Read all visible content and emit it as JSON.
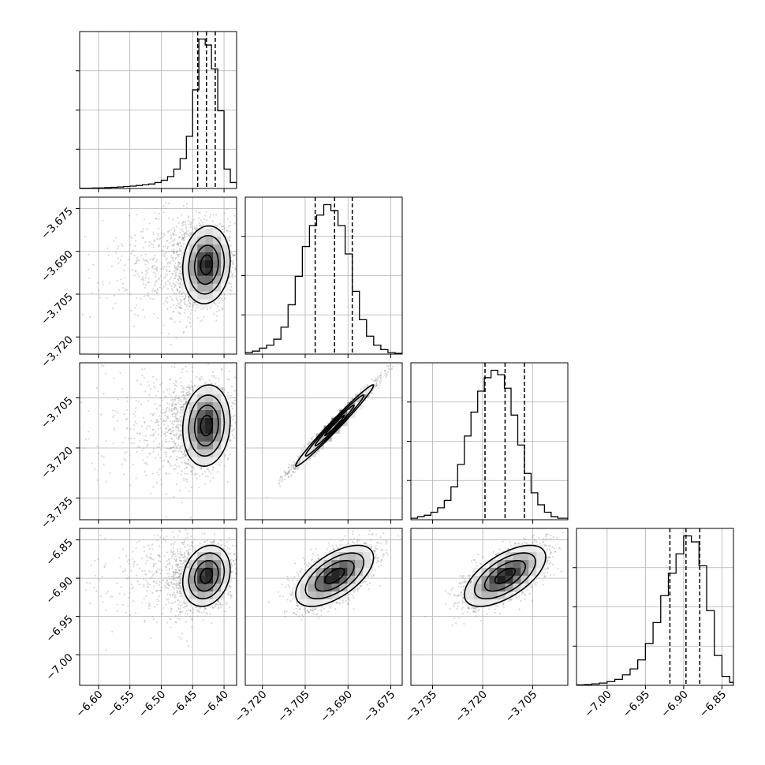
{
  "chart_data": {
    "type": "corner",
    "parameters": [
      {
        "id": "p1",
        "range": [
          -6.63,
          -6.38
        ],
        "ticks": [
          -6.6,
          -6.55,
          -6.5,
          -6.45,
          -6.4
        ],
        "tick_labels": [
          "−6.60",
          "−6.55",
          "−6.50",
          "−6.45",
          "−6.40"
        ],
        "median": -6.428,
        "quantiles": [
          -6.442,
          -6.414
        ],
        "hist_bins": [
          -6.63,
          -6.62,
          -6.61,
          -6.6,
          -6.59,
          -6.58,
          -6.57,
          -6.56,
          -6.55,
          -6.54,
          -6.53,
          -6.52,
          -6.51,
          -6.5,
          -6.49,
          -6.48,
          -6.47,
          -6.46,
          -6.45,
          -6.44,
          -6.43,
          -6.42,
          -6.41,
          -6.4,
          -6.39,
          -6.38
        ],
        "hist_counts": [
          0.2,
          0.2,
          0.3,
          0.4,
          0.6,
          0.8,
          1,
          1.3,
          1.6,
          2,
          2.5,
          3,
          4,
          5.5,
          8,
          13,
          20,
          35,
          66,
          100,
          96,
          80,
          52,
          13,
          4
        ]
      },
      {
        "id": "p2",
        "range": [
          -3.726,
          -3.671
        ],
        "ticks": [
          -3.72,
          -3.705,
          -3.69,
          -3.675
        ],
        "tick_labels": [
          "−3.720",
          "−3.705",
          "−3.690",
          "−3.675"
        ],
        "median": -3.6947,
        "quantiles": [
          -3.7015,
          -3.6885
        ],
        "hist_bins": [
          -3.726,
          -3.7235,
          -3.721,
          -3.7185,
          -3.716,
          -3.7135,
          -3.711,
          -3.7085,
          -3.706,
          -3.7035,
          -3.701,
          -3.6985,
          -3.696,
          -3.6935,
          -3.691,
          -3.6885,
          -3.686,
          -3.6835,
          -3.681,
          -3.6785,
          -3.676,
          -3.6735,
          -3.671
        ],
        "hist_counts": [
          1,
          2,
          4,
          6,
          10,
          18,
          33,
          52,
          72,
          86,
          93,
          100,
          96,
          86,
          67,
          42,
          23,
          12,
          6,
          3,
          1,
          0.5
        ]
      },
      {
        "id": "p3",
        "range": [
          -3.7415,
          -3.6945
        ],
        "ticks": [
          -3.735,
          -3.72,
          -3.705
        ],
        "tick_labels": [
          "−3.735",
          "−3.720",
          "−3.705"
        ],
        "median": -3.7133,
        "quantiles": [
          -3.7193,
          -3.7075
        ],
        "hist_bins": [
          -3.7415,
          -3.7395,
          -3.7375,
          -3.7355,
          -3.7335,
          -3.7315,
          -3.7295,
          -3.7275,
          -3.7255,
          -3.7235,
          -3.7215,
          -3.7195,
          -3.7175,
          -3.7155,
          -3.7135,
          -3.7115,
          -3.7095,
          -3.7075,
          -3.7055,
          -3.7035,
          -3.7015,
          -3.6995,
          -3.6975,
          -3.6945
        ],
        "hist_counts": [
          1,
          2,
          3,
          5,
          8,
          13,
          22,
          37,
          56,
          72,
          86,
          95,
          100,
          97,
          88,
          70,
          50,
          31,
          18,
          10,
          5,
          2,
          1
        ]
      },
      {
        "id": "p4",
        "range": [
          -7.04,
          -6.835
        ],
        "ticks": [
          -7.0,
          -6.95,
          -6.9,
          -6.85
        ],
        "tick_labels": [
          "−7.00",
          "−6.95",
          "−6.90",
          "−6.85"
        ],
        "median": -6.897,
        "quantiles": [
          -6.918,
          -6.879
        ],
        "hist_bins": [
          -7.04,
          -7.03,
          -7.02,
          -7.01,
          -7.0,
          -6.99,
          -6.98,
          -6.97,
          -6.96,
          -6.95,
          -6.94,
          -6.93,
          -6.92,
          -6.91,
          -6.9,
          -6.89,
          -6.88,
          -6.87,
          -6.86,
          -6.85,
          -6.84,
          -6.835
        ],
        "hist_counts": [
          0.3,
          0.5,
          1,
          1.5,
          2.5,
          4,
          7,
          11,
          17,
          28,
          42,
          60,
          75,
          88,
          100,
          96,
          80,
          50,
          20,
          6,
          2
        ]
      }
    ],
    "pairs": [
      {
        "x": "p1",
        "y": "p2",
        "center": [
          -6.428,
          -3.6947
        ],
        "sigma": [
          0.018,
          0.0065
        ],
        "rho": 0.1,
        "tail": "left"
      },
      {
        "x": "p1",
        "y": "p3",
        "center": [
          -6.428,
          -3.7133
        ],
        "sigma": [
          0.018,
          0.0058
        ],
        "rho": 0.1,
        "tail": "left"
      },
      {
        "x": "p2",
        "y": "p3",
        "center": [
          -3.6947,
          -3.7133
        ],
        "sigma": [
          0.0065,
          0.0058
        ],
        "rho": 0.985,
        "tail": "none"
      },
      {
        "x": "p1",
        "y": "p4",
        "center": [
          -6.428,
          -6.897
        ],
        "sigma": [
          0.018,
          0.019
        ],
        "rho": 0.2,
        "tail": "left"
      },
      {
        "x": "p2",
        "y": "p4",
        "center": [
          -3.6947,
          -6.897
        ],
        "sigma": [
          0.0065,
          0.019
        ],
        "rho": 0.6,
        "tail": "none"
      },
      {
        "x": "p3",
        "y": "p4",
        "center": [
          -3.7133,
          -6.897
        ],
        "sigma": [
          0.0058,
          0.019
        ],
        "rho": 0.62,
        "tail": "none"
      }
    ],
    "contour_levels_sigma": [
      0.5,
      1.0,
      1.5,
      2.0
    ],
    "grid": true,
    "legend": "none",
    "title": "",
    "colors": {
      "line": "#000000",
      "points": "#777777",
      "grid": "#b0b0b0"
    }
  }
}
